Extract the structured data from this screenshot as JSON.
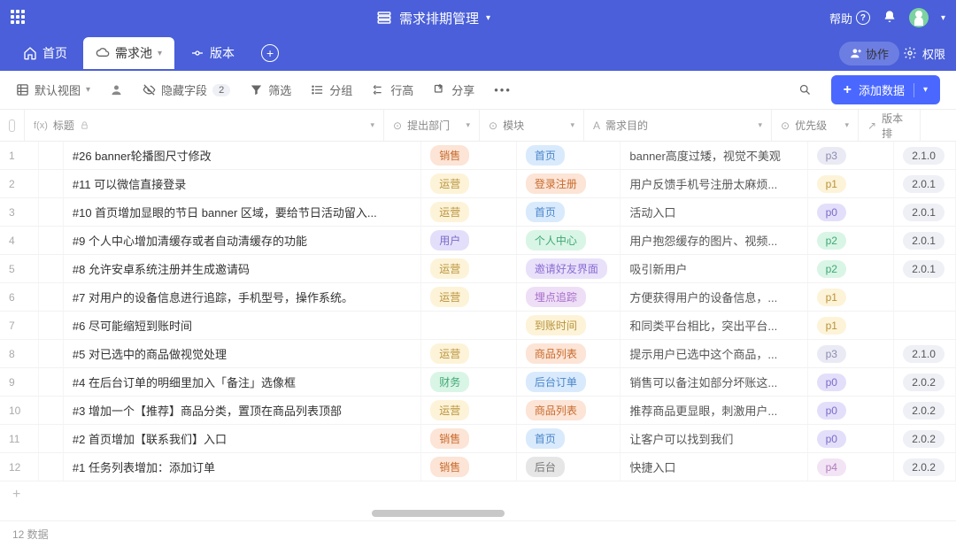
{
  "header": {
    "title": "需求排期管理",
    "help": "帮助"
  },
  "nav": {
    "home": "首页",
    "pool": "需求池",
    "version": "版本"
  },
  "navRight": {
    "collab": "协作",
    "perm": "权限"
  },
  "toolbar": {
    "view": "默认视图",
    "hideFields": "隐藏字段",
    "hideCount": "2",
    "filter": "筛选",
    "group": "分组",
    "rowHeight": "行高",
    "share": "分享",
    "addData": "添加数据"
  },
  "columns": {
    "title": "标题",
    "dept": "提出部门",
    "module": "模块",
    "purpose": "需求目的",
    "priority": "优先级",
    "version": "版本排"
  },
  "rows": [
    {
      "n": "1",
      "title": "#26 banner轮播图尺寸修改",
      "dept": "销售",
      "deptCls": "tag-sales",
      "module": "首页",
      "modCls": "tag-home",
      "purpose": "banner高度过矮，视觉不美观",
      "prio": "p3",
      "prioCls": "tag-p3",
      "ver": "2.1.0"
    },
    {
      "n": "2",
      "title": "#11 可以微信直接登录",
      "dept": "运营",
      "deptCls": "tag-ops",
      "module": "登录注册",
      "modCls": "tag-login",
      "purpose": "用户反馈手机号注册太麻烦...",
      "prio": "p1",
      "prioCls": "tag-p1",
      "ver": "2.0.1"
    },
    {
      "n": "3",
      "title": "#10 首页增加显眼的节日 banner 区域，要给节日活动留入...",
      "dept": "运营",
      "deptCls": "tag-ops",
      "module": "首页",
      "modCls": "tag-home",
      "purpose": "活动入口",
      "prio": "p0",
      "prioCls": "tag-p0",
      "ver": "2.0.1"
    },
    {
      "n": "4",
      "title": "#9 个人中心增加清缓存或者自动清缓存的功能",
      "dept": "用户",
      "deptCls": "tag-user",
      "module": "个人中心",
      "modCls": "tag-personal",
      "purpose": "用户抱怨缓存的图片、视频...",
      "prio": "p2",
      "prioCls": "tag-p2",
      "ver": "2.0.1"
    },
    {
      "n": "5",
      "title": "#8 允许安卓系统注册并生成邀请码",
      "dept": "运营",
      "deptCls": "tag-ops",
      "module": "邀请好友界面",
      "modCls": "tag-invite",
      "purpose": "吸引新用户",
      "prio": "p2",
      "prioCls": "tag-p2",
      "ver": "2.0.1"
    },
    {
      "n": "6",
      "title": "#7 对用户的设备信息进行追踪，手机型号，操作系统。",
      "dept": "运营",
      "deptCls": "tag-ops",
      "module": "埋点追踪",
      "modCls": "tag-track",
      "purpose": "方便获得用户的设备信息，...",
      "prio": "p1",
      "prioCls": "tag-p1",
      "ver": ""
    },
    {
      "n": "7",
      "title": "#6 尽可能缩短到账时间",
      "dept": "",
      "deptCls": "",
      "module": "到账时间",
      "modCls": "tag-arrival",
      "purpose": "和同类平台相比，突出平台...",
      "prio": "p1",
      "prioCls": "tag-p1",
      "ver": ""
    },
    {
      "n": "8",
      "title": "#5 对已选中的商品做视觉处理",
      "dept": "运营",
      "deptCls": "tag-ops",
      "module": "商品列表",
      "modCls": "tag-goods",
      "purpose": "提示用户已选中这个商品，...",
      "prio": "p3",
      "prioCls": "tag-p3",
      "ver": "2.1.0"
    },
    {
      "n": "9",
      "title": "#4 在后台订单的明细里加入「备注」选像框",
      "dept": "财务",
      "deptCls": "tag-finance",
      "module": "后台订单",
      "modCls": "tag-backend",
      "purpose": "销售可以备注如部分坏账这...",
      "prio": "p0",
      "prioCls": "tag-p0",
      "ver": "2.0.2"
    },
    {
      "n": "10",
      "title": "#3 增加一个【推荐】商品分类，置顶在商品列表顶部",
      "dept": "运营",
      "deptCls": "tag-ops",
      "module": "商品列表",
      "modCls": "tag-goods",
      "purpose": "推荐商品更显眼，刺激用户...",
      "prio": "p0",
      "prioCls": "tag-p0",
      "ver": "2.0.2"
    },
    {
      "n": "11",
      "title": "#2 首页增加【联系我们】入口",
      "dept": "销售",
      "deptCls": "tag-sales",
      "module": "首页",
      "modCls": "tag-home",
      "purpose": "让客户可以找到我们",
      "prio": "p0",
      "prioCls": "tag-p0",
      "ver": "2.0.2"
    },
    {
      "n": "12",
      "title": "#1 任务列表增加：添加订单",
      "dept": "销售",
      "deptCls": "tag-sales",
      "module": "后台",
      "modCls": "tag-admin",
      "purpose": "快捷入口",
      "prio": "p4",
      "prioCls": "tag-p4",
      "ver": "2.0.2"
    }
  ],
  "footer": {
    "count": "12 数据"
  }
}
